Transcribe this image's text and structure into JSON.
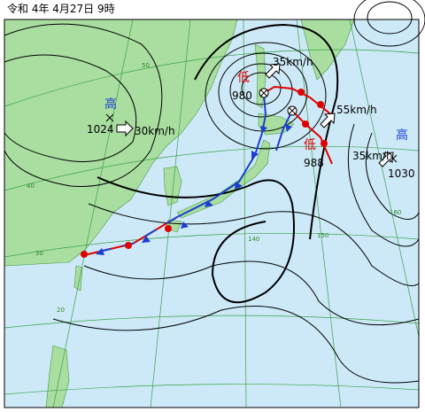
{
  "header": {
    "title": "令和 4年 4月27日 9時"
  },
  "systems": [
    {
      "kind": "高",
      "pressure": 1024,
      "speed": "30km/h"
    },
    {
      "kind": "低",
      "pressure": 980,
      "speed": "35km/h"
    },
    {
      "kind": "低",
      "pressure": 988,
      "speed": "55km/h"
    },
    {
      "kind": "高",
      "pressure": 1030,
      "speed": "35km/h"
    }
  ],
  "grid_labels": [
    "50",
    "40",
    "30",
    "20",
    "140",
    "150",
    "160"
  ]
}
